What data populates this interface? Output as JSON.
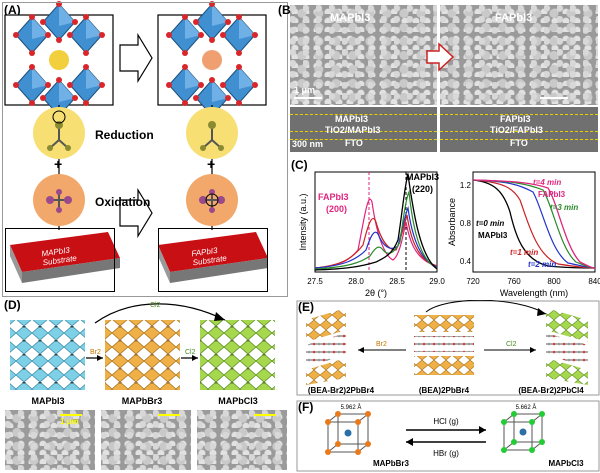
{
  "panel_labels": {
    "A": "(A)",
    "B": "(B)",
    "C": "(C)",
    "D": "(D)",
    "E": "(E)",
    "F": "(F)"
  },
  "panel_a": {
    "reduction_label": "Reduction",
    "oxidation_label": "Oxidation",
    "plus": "+",
    "substrate_left_compound": "MAPbI3",
    "substrate_left_word": "Substrate",
    "substrate_right_compound": "FAPbI3",
    "substrate_right_word": "Substrate"
  },
  "panel_b": {
    "top_left_title": "MAPbI3",
    "top_right_title": "FAPbI3",
    "scale_top": "1 μm",
    "scale_bottom": "300 nm",
    "left_layer1": "MAPbI3",
    "left_layer2": "TiO2/MAPbI3",
    "left_layer3": "FTO",
    "right_layer1": "FAPbI3",
    "right_layer2": "TiO2/FAPbI3",
    "right_layer3": "FTO"
  },
  "panel_c": {
    "xrd": {
      "ylabel": "Intensity (a.u.)",
      "xlabel": "2θ (°)",
      "xticks": [
        "27.5",
        "28.0",
        "28.5",
        "29.0"
      ],
      "fa_label": "FAPbI3",
      "fa_peak": "(200)",
      "ma_label": "MAPbI3",
      "ma_peak": "(220)"
    },
    "abs": {
      "ylabel": "Absorbance",
      "xlabel": "Wavelength (nm)",
      "xticks": [
        "720",
        "760",
        "800",
        "840"
      ],
      "yticks": [
        "0.4",
        "0.8",
        "1.2"
      ],
      "t4": "t=4 min",
      "fa": "FAPbI3",
      "t3": "t=3 min",
      "t0": "t=0 min",
      "ma": "MAPbI3",
      "t1": "t=1 min",
      "t2": "t=2 min"
    }
  },
  "panel_d": {
    "br2": "Br2",
    "cl2_top": "Cl2",
    "cl2_mid": "Cl2",
    "ma_i": "MAPbI3",
    "ma_br": "MAPbBr3",
    "ma_cl": "MAPbCl3",
    "scale": "1 μm"
  },
  "panel_e": {
    "br2": "Br2",
    "cl2": "Cl2",
    "left": "(BEA-Br2)2PbBr4",
    "middle": "(BEA)2PbBr4",
    "right": "(BEA-Br2)2PbCl4"
  },
  "panel_f": {
    "hcl": "HCl (g)",
    "hbr": "HBr (g)",
    "left": "MAPbBr3",
    "right": "MAPbCl3",
    "left_dim": "5.962 Å",
    "right_dim": "5.662 Å"
  },
  "colors": {
    "octa_blue": "#3f8fd1",
    "octa_orange": "#e8a73a",
    "octa_green": "#8cc63f",
    "cyan": "#6cc6dd",
    "red": "#d22",
    "magenta": "#e0247e",
    "green": "#2a8a2a",
    "blue": "#2233cc"
  }
}
